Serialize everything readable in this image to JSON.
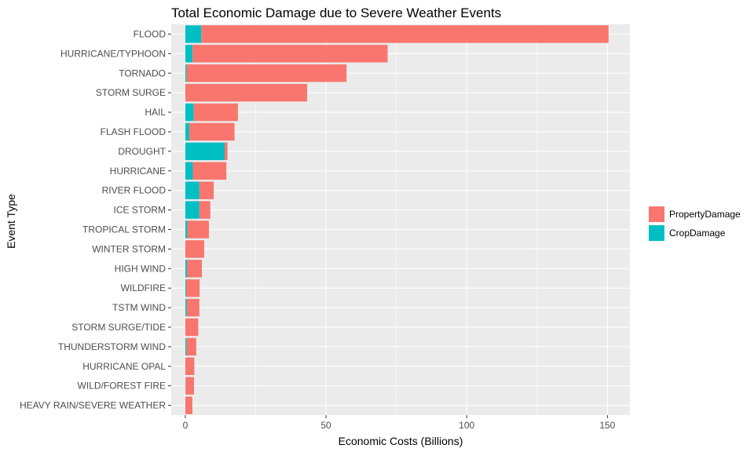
{
  "chart_data": {
    "type": "bar",
    "orientation": "horizontal",
    "stacked": true,
    "title": "Total Economic Damage due to Severe Weather Events",
    "xlabel": "Economic Costs (Billions)",
    "ylabel": "Event Type",
    "xlim": [
      -5,
      158
    ],
    "xticks": [
      0,
      50,
      100,
      150
    ],
    "xtick_labels": [
      "0",
      "50",
      "100",
      "150"
    ],
    "grid": true,
    "legend_position": "right",
    "categories": [
      "FLOOD",
      "HURRICANE/TYPHOON",
      "TORNADO",
      "STORM SURGE",
      "HAIL",
      "FLASH FLOOD",
      "DROUGHT",
      "HURRICANE",
      "RIVER FLOOD",
      "ICE STORM",
      "TROPICAL STORM",
      "WINTER STORM",
      "HIGH WIND",
      "WILDFIRE",
      "TSTM WIND",
      "STORM SURGE/TIDE",
      "THUNDERSTORM WIND",
      "HURRICANE OPAL",
      "WILD/FOREST FIRE",
      "HEAVY RAIN/SEVERE WEATHER"
    ],
    "series": [
      {
        "name": "CropDamage",
        "color": "#00BFC4",
        "values": [
          5.7,
          2.6,
          0.4,
          0.0,
          3.0,
          1.4,
          14.0,
          2.7,
          5.0,
          5.0,
          0.7,
          0.0,
          0.6,
          0.3,
          0.5,
          0.0,
          0.4,
          0.0,
          0.1,
          0.0
        ]
      },
      {
        "name": "PropertyDamage",
        "color": "#F8766D",
        "values": [
          144.7,
          69.3,
          56.9,
          43.3,
          15.7,
          16.1,
          1.0,
          11.9,
          5.1,
          3.9,
          7.7,
          6.7,
          5.3,
          4.8,
          4.5,
          4.6,
          3.5,
          3.2,
          3.0,
          2.5
        ]
      }
    ]
  },
  "legend": {
    "items": [
      {
        "label": "PropertyDamage",
        "color": "#F8766D"
      },
      {
        "label": "CropDamage",
        "color": "#00BFC4"
      }
    ]
  }
}
